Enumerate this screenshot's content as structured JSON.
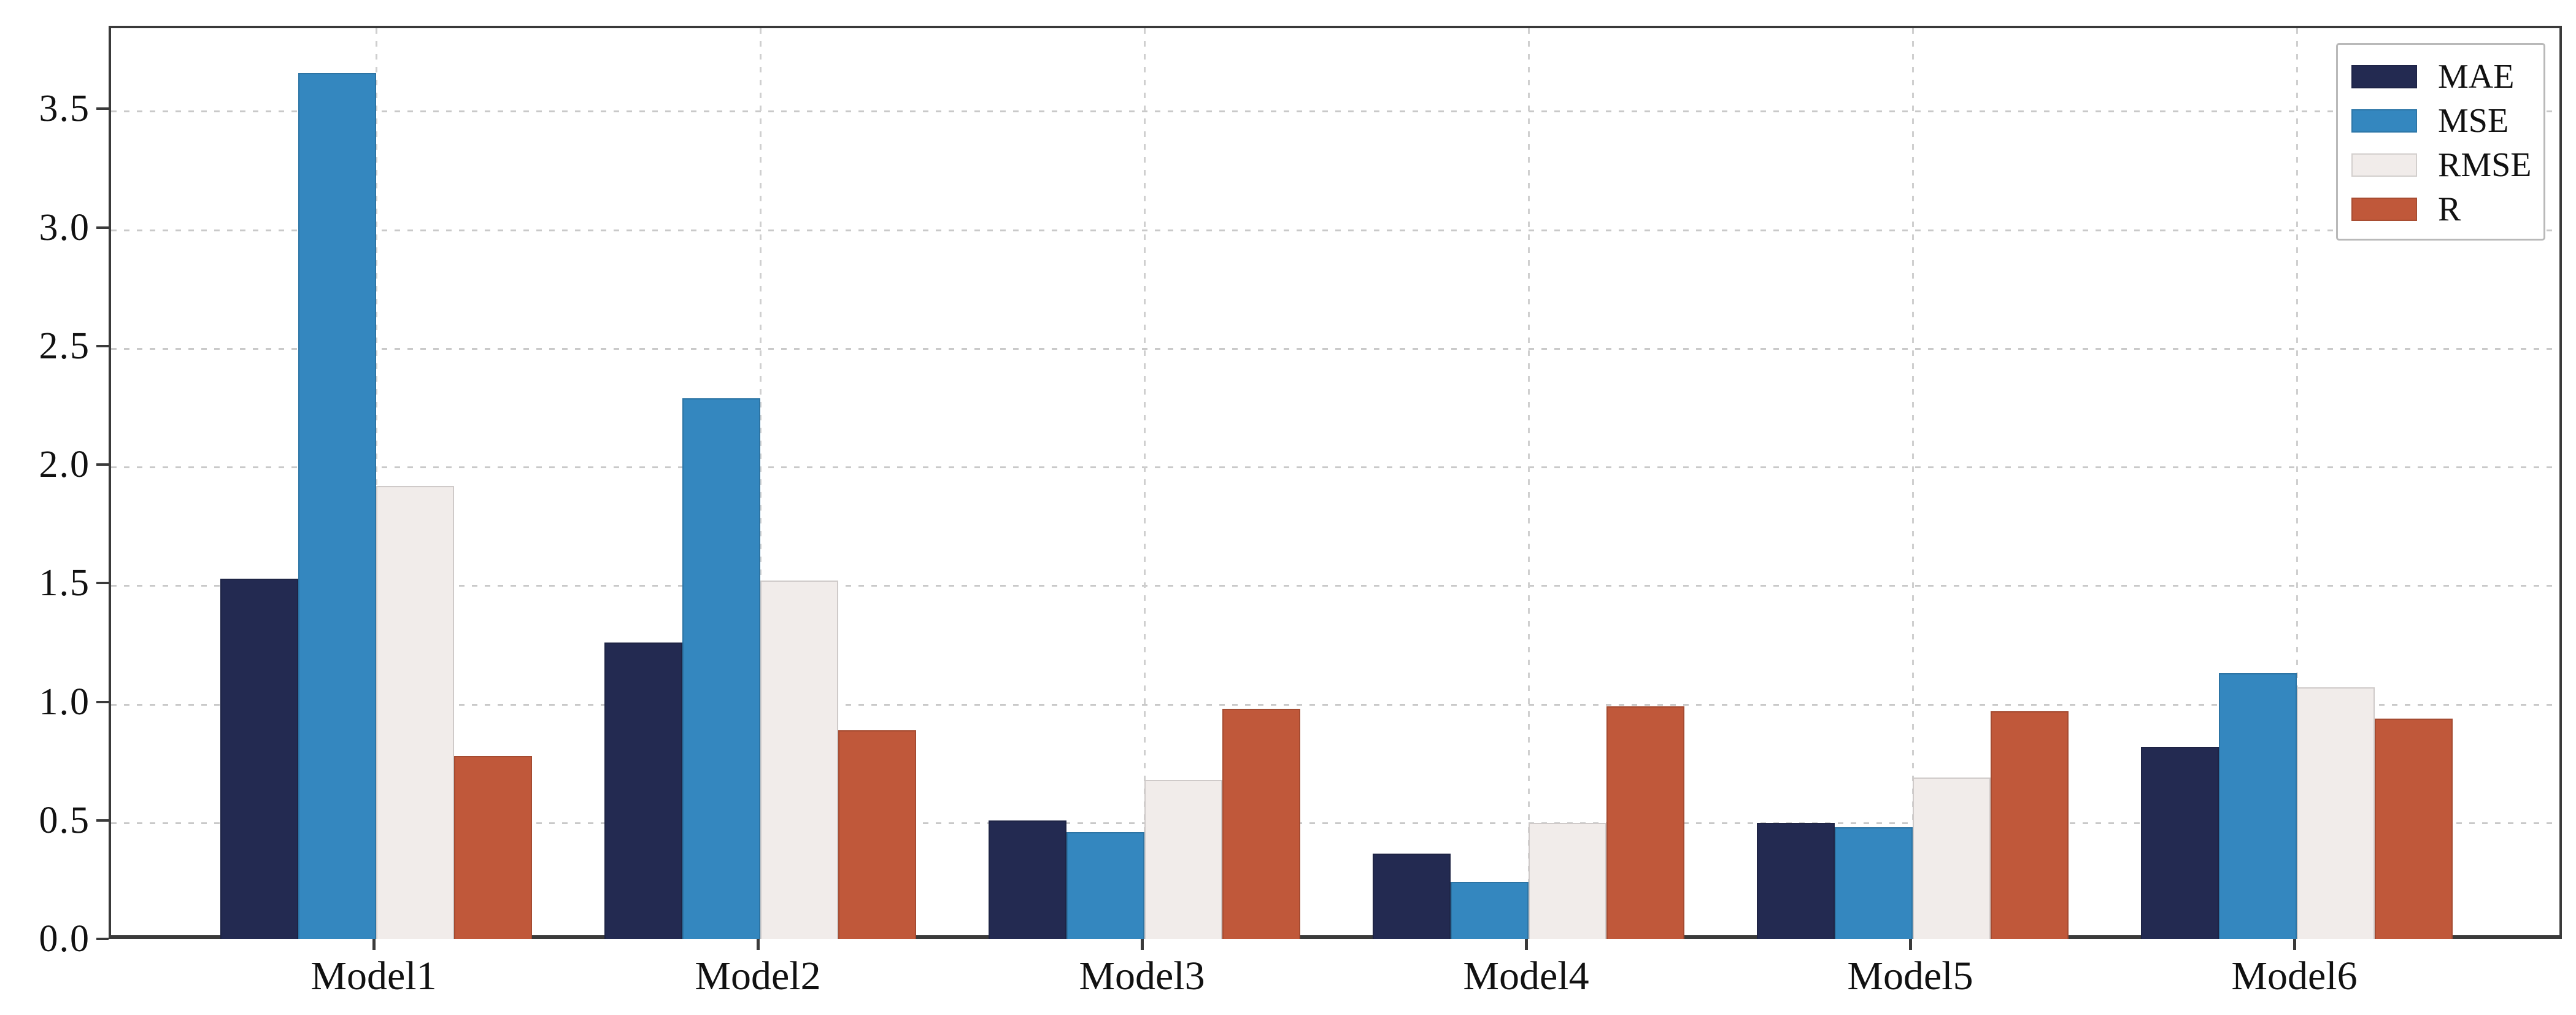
{
  "axes": {
    "y_ticks": [
      "0.0",
      "0.5",
      "1.0",
      "1.5",
      "2.0",
      "2.5",
      "3.0",
      "3.5"
    ],
    "y_tick_values": [
      0,
      0.5,
      1.0,
      1.5,
      2.0,
      2.5,
      3.0,
      3.5
    ],
    "grid": "dashed",
    "spine_color": "#3a3a3a",
    "gridline_color": "#c9c9c9"
  },
  "legend": {
    "position": "upper right",
    "entries": [
      "MAE",
      "MSE",
      "RMSE",
      "R"
    ]
  },
  "chart_data": {
    "type": "bar",
    "title": "",
    "xlabel": "",
    "ylabel": "",
    "ylim": [
      0,
      3.85
    ],
    "grid": true,
    "legend_position": "upper right",
    "categories": [
      "Model1",
      "Model2",
      "Model3",
      "Model4",
      "Model5",
      "Model6"
    ],
    "series": [
      {
        "name": "MAE",
        "color": "#232a51",
        "values": [
          1.52,
          1.25,
          0.5,
          0.36,
          0.49,
          0.81
        ]
      },
      {
        "name": "MSE",
        "color": "#3487bf",
        "values": [
          3.65,
          2.28,
          0.45,
          0.24,
          0.47,
          1.12
        ]
      },
      {
        "name": "RMSE",
        "color": "#f1ecea",
        "values": [
          1.91,
          1.51,
          0.67,
          0.49,
          0.68,
          1.06
        ]
      },
      {
        "name": "R",
        "color": "#c0583a",
        "values": [
          0.77,
          0.88,
          0.97,
          0.98,
          0.96,
          0.93
        ]
      }
    ]
  }
}
